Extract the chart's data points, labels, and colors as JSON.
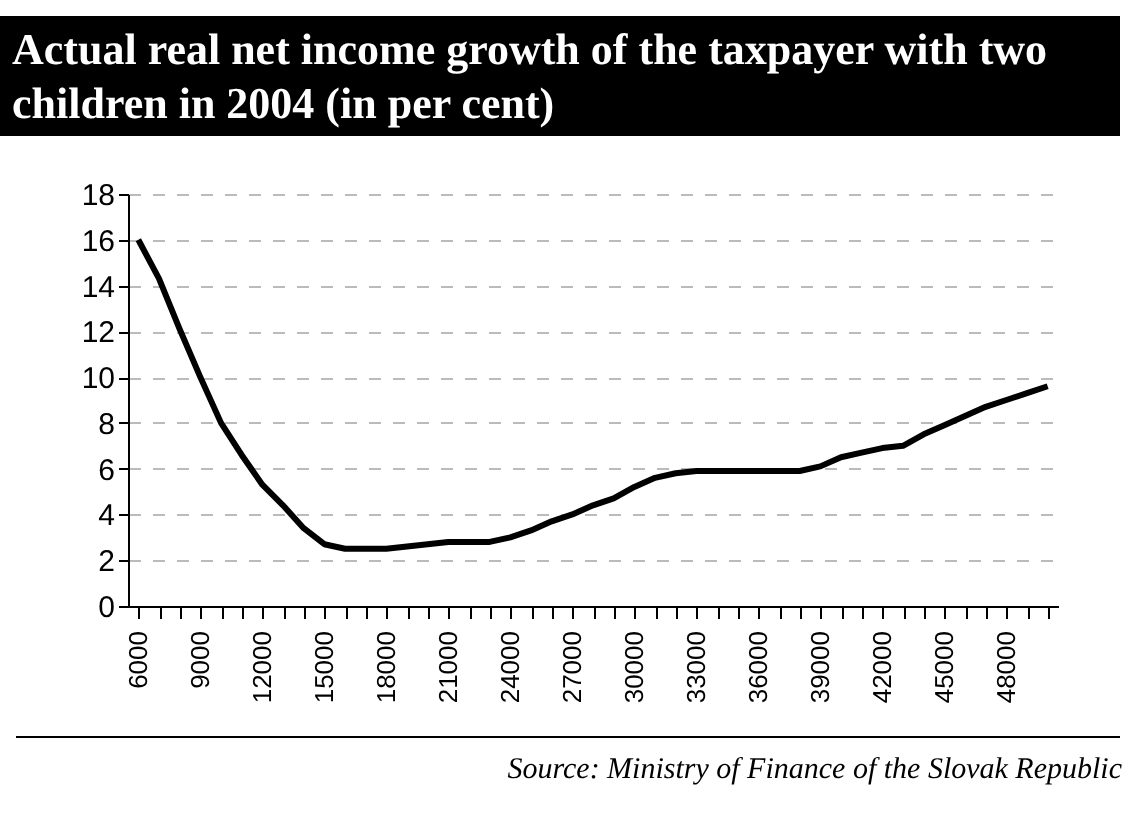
{
  "chart_data": {
    "type": "line",
    "title": "Actual real net income growth of the taxpayer with two children in 2004 (in per cent)",
    "annotations": [
      "Source: Ministry of Finance of the Slovak Republic"
    ],
    "x": [
      6000,
      7000,
      8000,
      9000,
      10000,
      11000,
      12000,
      13000,
      14000,
      15000,
      16000,
      17000,
      18000,
      19000,
      20000,
      21000,
      22000,
      23000,
      24000,
      25000,
      26000,
      27000,
      28000,
      29000,
      30000,
      31000,
      32000,
      33000,
      34000,
      35000,
      36000,
      37000,
      38000,
      39000,
      40000,
      41000,
      42000,
      43000,
      44000,
      45000,
      46000,
      47000,
      48000,
      49000,
      50000
    ],
    "series": [
      {
        "color": "#000000",
        "values": [
          16,
          14.3,
          12.1,
          10,
          8,
          6.6,
          5.3,
          4.4,
          3.4,
          2.7,
          2.5,
          2.5,
          2.5,
          2.6,
          2.7,
          2.8,
          2.8,
          2.8,
          3,
          3.3,
          3.7,
          4,
          4.4,
          4.7,
          5.2,
          5.6,
          5.8,
          5.9,
          5.9,
          5.9,
          5.9,
          5.9,
          5.9,
          6.1,
          6.5,
          6.7,
          6.9,
          7,
          7.5,
          7.9,
          8.3,
          8.7,
          9,
          9.3,
          9.6
        ]
      }
    ],
    "xlim": [
      5500,
      50500
    ],
    "xticks": [
      6000,
      {
        "value": 7000,
        "label": null
      },
      {
        "value": 8000,
        "label": null
      },
      9000,
      {
        "value": 10000,
        "label": null
      },
      {
        "value": 11000,
        "label": null
      },
      12000,
      {
        "value": 13000,
        "label": null
      },
      {
        "value": 14000,
        "label": null
      },
      15000,
      {
        "value": 16000,
        "label": null
      },
      {
        "value": 17000,
        "label": null
      },
      18000,
      {
        "value": 19000,
        "label": null
      },
      {
        "value": 20000,
        "label": null
      },
      21000,
      {
        "value": 22000,
        "label": null
      },
      {
        "value": 23000,
        "label": null
      },
      24000,
      {
        "value": 25000,
        "label": null
      },
      {
        "value": 26000,
        "label": null
      },
      27000,
      {
        "value": 28000,
        "label": null
      },
      {
        "value": 29000,
        "label": null
      },
      30000,
      {
        "value": 31000,
        "label": null
      },
      {
        "value": 32000,
        "label": null
      },
      33000,
      {
        "value": 34000,
        "label": null
      },
      {
        "value": 35000,
        "label": null
      },
      36000,
      {
        "value": 37000,
        "label": null
      },
      {
        "value": 38000,
        "label": null
      },
      39000,
      {
        "value": 40000,
        "label": null
      },
      {
        "value": 41000,
        "label": null
      },
      42000,
      {
        "value": 43000,
        "label": null
      },
      {
        "value": 44000,
        "label": null
      },
      45000,
      {
        "value": 46000,
        "label": null
      },
      {
        "value": 47000,
        "label": null
      },
      48000,
      {
        "value": 49000,
        "label": null
      },
      {
        "value": 50000,
        "label": null
      }
    ],
    "ylim": [
      0,
      18
    ],
    "yticks": [
      0,
      2,
      4,
      6,
      8,
      10,
      12,
      14,
      16,
      18
    ],
    "grid": "y",
    "marker": "none",
    "line_style": "solid"
  }
}
